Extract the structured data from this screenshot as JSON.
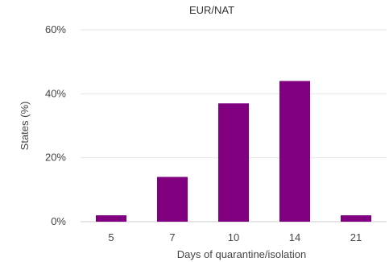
{
  "chart_data": {
    "type": "bar",
    "title": "EUR/NAT",
    "xlabel": "Days of quarantine/isolation",
    "ylabel": "States (%)",
    "categories": [
      "5",
      "7",
      "10",
      "14",
      "21"
    ],
    "values": [
      2,
      14,
      37,
      44,
      2
    ],
    "ylim": [
      0,
      60
    ],
    "yticks": [
      "0%",
      "20%",
      "40%",
      "60%"
    ],
    "grid": true,
    "legend": "none",
    "bar_color": "#800080"
  }
}
